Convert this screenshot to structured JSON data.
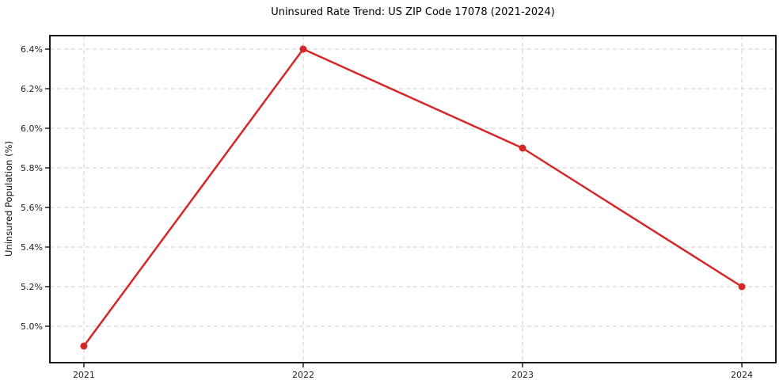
{
  "chart_data": {
    "type": "line",
    "title": "Uninsured Rate Trend: US ZIP Code 17078 (2021-2024)",
    "xlabel": "",
    "ylabel": "Uninsured Population (%)",
    "categories": [
      "2021",
      "2022",
      "2023",
      "2024"
    ],
    "x": [
      2021,
      2022,
      2023,
      2024
    ],
    "series": [
      {
        "name": "Uninsured rate",
        "values": [
          4.9,
          6.4,
          5.9,
          5.2
        ],
        "color": "#d62728",
        "marker": "circle"
      }
    ],
    "yticks": [
      5.0,
      5.2,
      5.4,
      5.6,
      5.8,
      6.0,
      6.2,
      6.4
    ],
    "ytick_labels": [
      "5.0%",
      "5.2%",
      "5.4%",
      "5.6%",
      "5.8%",
      "6.0%",
      "6.2%",
      "6.4%"
    ],
    "xlim": [
      2020.845,
      2024.155
    ],
    "ylim": [
      4.816,
      6.468
    ],
    "grid": true,
    "grid_style": "dashed",
    "legend": "none",
    "colors": {
      "line": "#d62728",
      "grid": "#cfcfcf",
      "axis": "#000000",
      "tick_text": "#222222",
      "background": "#ffffff"
    }
  }
}
